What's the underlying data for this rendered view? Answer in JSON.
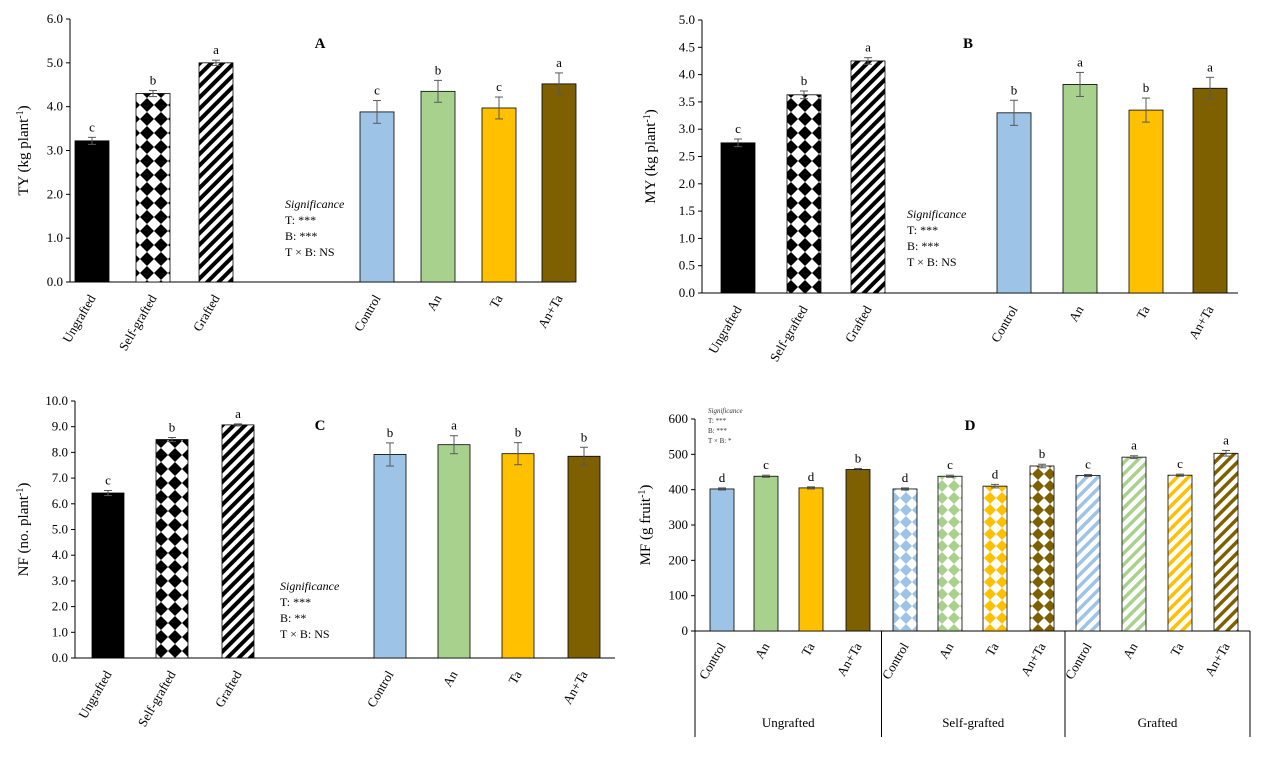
{
  "chart_data": [
    {
      "id": "A",
      "type": "bar",
      "title": "A",
      "ylabel": "TY (kg plant",
      "ylabel_sup": "-1",
      "ylabel_end": ")",
      "ylim": [
        0,
        6
      ],
      "yticks": [
        "0.0",
        "1.0",
        "2.0",
        "3.0",
        "4.0",
        "5.0",
        "6.0"
      ],
      "categories": [
        "Ungrafted",
        "Self-grafted",
        "Grafted",
        "Control",
        "An",
        "Ta",
        "An+Ta"
      ],
      "values": [
        3.22,
        4.3,
        5.0,
        3.88,
        4.35,
        3.97,
        4.52
      ],
      "errors": [
        0.08,
        0.07,
        0.06,
        0.26,
        0.25,
        0.25,
        0.25
      ],
      "letters": [
        "c",
        "b",
        "a",
        "c",
        "b",
        "c",
        "a"
      ],
      "fills": [
        "solid-black",
        "checker",
        "stripe",
        "#9dc3e6",
        "#a9d18e",
        "#ffc000",
        "#7f6000"
      ],
      "significance": {
        "heading": "Significance",
        "lines": [
          "T: ***",
          "B: ***",
          "T × B: NS"
        ]
      }
    },
    {
      "id": "B",
      "type": "bar",
      "title": "B",
      "ylabel": "MY (kg plant",
      "ylabel_sup": "-1",
      "ylabel_end": ")",
      "ylim": [
        0,
        5
      ],
      "yticks": [
        "0.0",
        "0.5",
        "1.0",
        "1.5",
        "2.0",
        "2.5",
        "3.0",
        "3.5",
        "4.0",
        "4.5",
        "5.0"
      ],
      "categories": [
        "Ungrafted",
        "Self-grafted",
        "Grafted",
        "Control",
        "An",
        "Ta",
        "An+Ta"
      ],
      "values": [
        2.75,
        3.63,
        4.25,
        3.3,
        3.82,
        3.35,
        3.75
      ],
      "errors": [
        0.07,
        0.07,
        0.06,
        0.23,
        0.22,
        0.22,
        0.2
      ],
      "letters": [
        "c",
        "b",
        "a",
        "b",
        "a",
        "b",
        "a"
      ],
      "fills": [
        "solid-black",
        "checker",
        "stripe",
        "#9dc3e6",
        "#a9d18e",
        "#ffc000",
        "#7f6000"
      ],
      "significance": {
        "heading": "Significance",
        "lines": [
          "T: ***",
          "B: ***",
          "T × B: NS"
        ]
      }
    },
    {
      "id": "C",
      "type": "bar",
      "title": "C",
      "ylabel": "NF (no. plant",
      "ylabel_sup": "-1",
      "ylabel_end": ")",
      "ylim": [
        0,
        10
      ],
      "yticks": [
        "0.0",
        "1.0",
        "2.0",
        "3.0",
        "4.0",
        "5.0",
        "6.0",
        "7.0",
        "8.0",
        "9.0",
        "10.0"
      ],
      "categories": [
        "Ungrafted",
        "Self-grafted",
        "Grafted",
        "Control",
        "An",
        "Ta",
        "An+Ta"
      ],
      "values": [
        6.42,
        8.5,
        9.07,
        7.92,
        8.3,
        7.95,
        7.85
      ],
      "errors": [
        0.1,
        0.08,
        0.04,
        0.45,
        0.35,
        0.43,
        0.35
      ],
      "letters": [
        "c",
        "b",
        "a",
        "b",
        "a",
        "b",
        "b"
      ],
      "fills": [
        "solid-black",
        "checker",
        "stripe",
        "#9dc3e6",
        "#a9d18e",
        "#ffc000",
        "#7f6000"
      ],
      "significance": {
        "heading": "Significance",
        "lines": [
          "T: ***",
          "B: **",
          "T × B: NS"
        ]
      }
    },
    {
      "id": "D",
      "type": "bar",
      "title": "D",
      "ylabel": "MF (g fruit",
      "ylabel_sup": "-1",
      "ylabel_end": ")",
      "ylim": [
        0,
        600
      ],
      "yticks": [
        "0",
        "100",
        "200",
        "300",
        "400",
        "500",
        "600"
      ],
      "groups": [
        "Ungrafted",
        "Self-grafted",
        "Grafted"
      ],
      "categories": [
        "Control",
        "An",
        "Ta",
        "An+Ta",
        "Control",
        "An",
        "Ta",
        "An+Ta",
        "Control",
        "An",
        "Ta",
        "An+Ta"
      ],
      "values": [
        402,
        438,
        405,
        457,
        402,
        438,
        410,
        467,
        440,
        492,
        441,
        503
      ],
      "errors": [
        3,
        3,
        3,
        3,
        3,
        3,
        5,
        5,
        3,
        4,
        3,
        8
      ],
      "letters": [
        "d",
        "c",
        "d",
        "b",
        "d",
        "c",
        "d",
        "b",
        "c",
        "a",
        "c",
        "a"
      ],
      "fills": [
        "#9dc3e6",
        "#a9d18e",
        "#ffc000",
        "#7f6000",
        "#9dc3e6",
        "#a9d18e",
        "#ffc000",
        "#7f6000",
        "#9dc3e6",
        "#a9d18e",
        "#ffc000",
        "#7f6000"
      ],
      "patterns": [
        "solid",
        "solid",
        "solid",
        "solid",
        "diamond",
        "diamond",
        "diamond",
        "diamond",
        "stripe",
        "stripe",
        "stripe",
        "stripe"
      ],
      "significance": {
        "heading": "Significance",
        "lines": [
          "T: ***",
          "B: ***",
          "T × B: *"
        ]
      }
    }
  ]
}
